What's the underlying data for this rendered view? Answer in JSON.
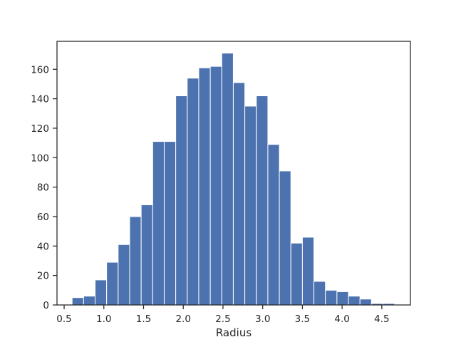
{
  "chart_data": {
    "type": "bar",
    "title": "",
    "xlabel": "Radius",
    "ylabel": "",
    "xlim": [
      0.41,
      4.86
    ],
    "ylim": [
      0,
      179
    ],
    "grid": false,
    "bar_color": "#4c72b0",
    "bin_edges": [
      0.6,
      0.745,
      0.89,
      1.035,
      1.18,
      1.325,
      1.47,
      1.615,
      1.76,
      1.905,
      2.05,
      2.195,
      2.34,
      2.485,
      2.63,
      2.775,
      2.92,
      3.065,
      3.21,
      3.355,
      3.5,
      3.645,
      3.79,
      3.935,
      4.08,
      4.225,
      4.37,
      4.515,
      4.66
    ],
    "values": [
      5,
      6,
      17,
      29,
      41,
      60,
      68,
      111,
      111,
      142,
      154,
      161,
      162,
      171,
      151,
      135,
      142,
      109,
      91,
      42,
      46,
      16,
      10,
      9,
      6,
      4,
      1,
      1
    ],
    "xticks": [
      {
        "value": 0.5,
        "label": "0.5"
      },
      {
        "value": 1.0,
        "label": "1.0"
      },
      {
        "value": 1.5,
        "label": "1.5"
      },
      {
        "value": 2.0,
        "label": "2.0"
      },
      {
        "value": 2.5,
        "label": "2.5"
      },
      {
        "value": 3.0,
        "label": "3.0"
      },
      {
        "value": 3.5,
        "label": "3.5"
      },
      {
        "value": 4.0,
        "label": "4.0"
      },
      {
        "value": 4.5,
        "label": "4.5"
      }
    ],
    "yticks": [
      {
        "value": 0,
        "label": "0"
      },
      {
        "value": 20,
        "label": "20"
      },
      {
        "value": 40,
        "label": "40"
      },
      {
        "value": 60,
        "label": "60"
      },
      {
        "value": 80,
        "label": "80"
      },
      {
        "value": 100,
        "label": "100"
      },
      {
        "value": 120,
        "label": "120"
      },
      {
        "value": 140,
        "label": "140"
      },
      {
        "value": 160,
        "label": "160"
      }
    ]
  }
}
